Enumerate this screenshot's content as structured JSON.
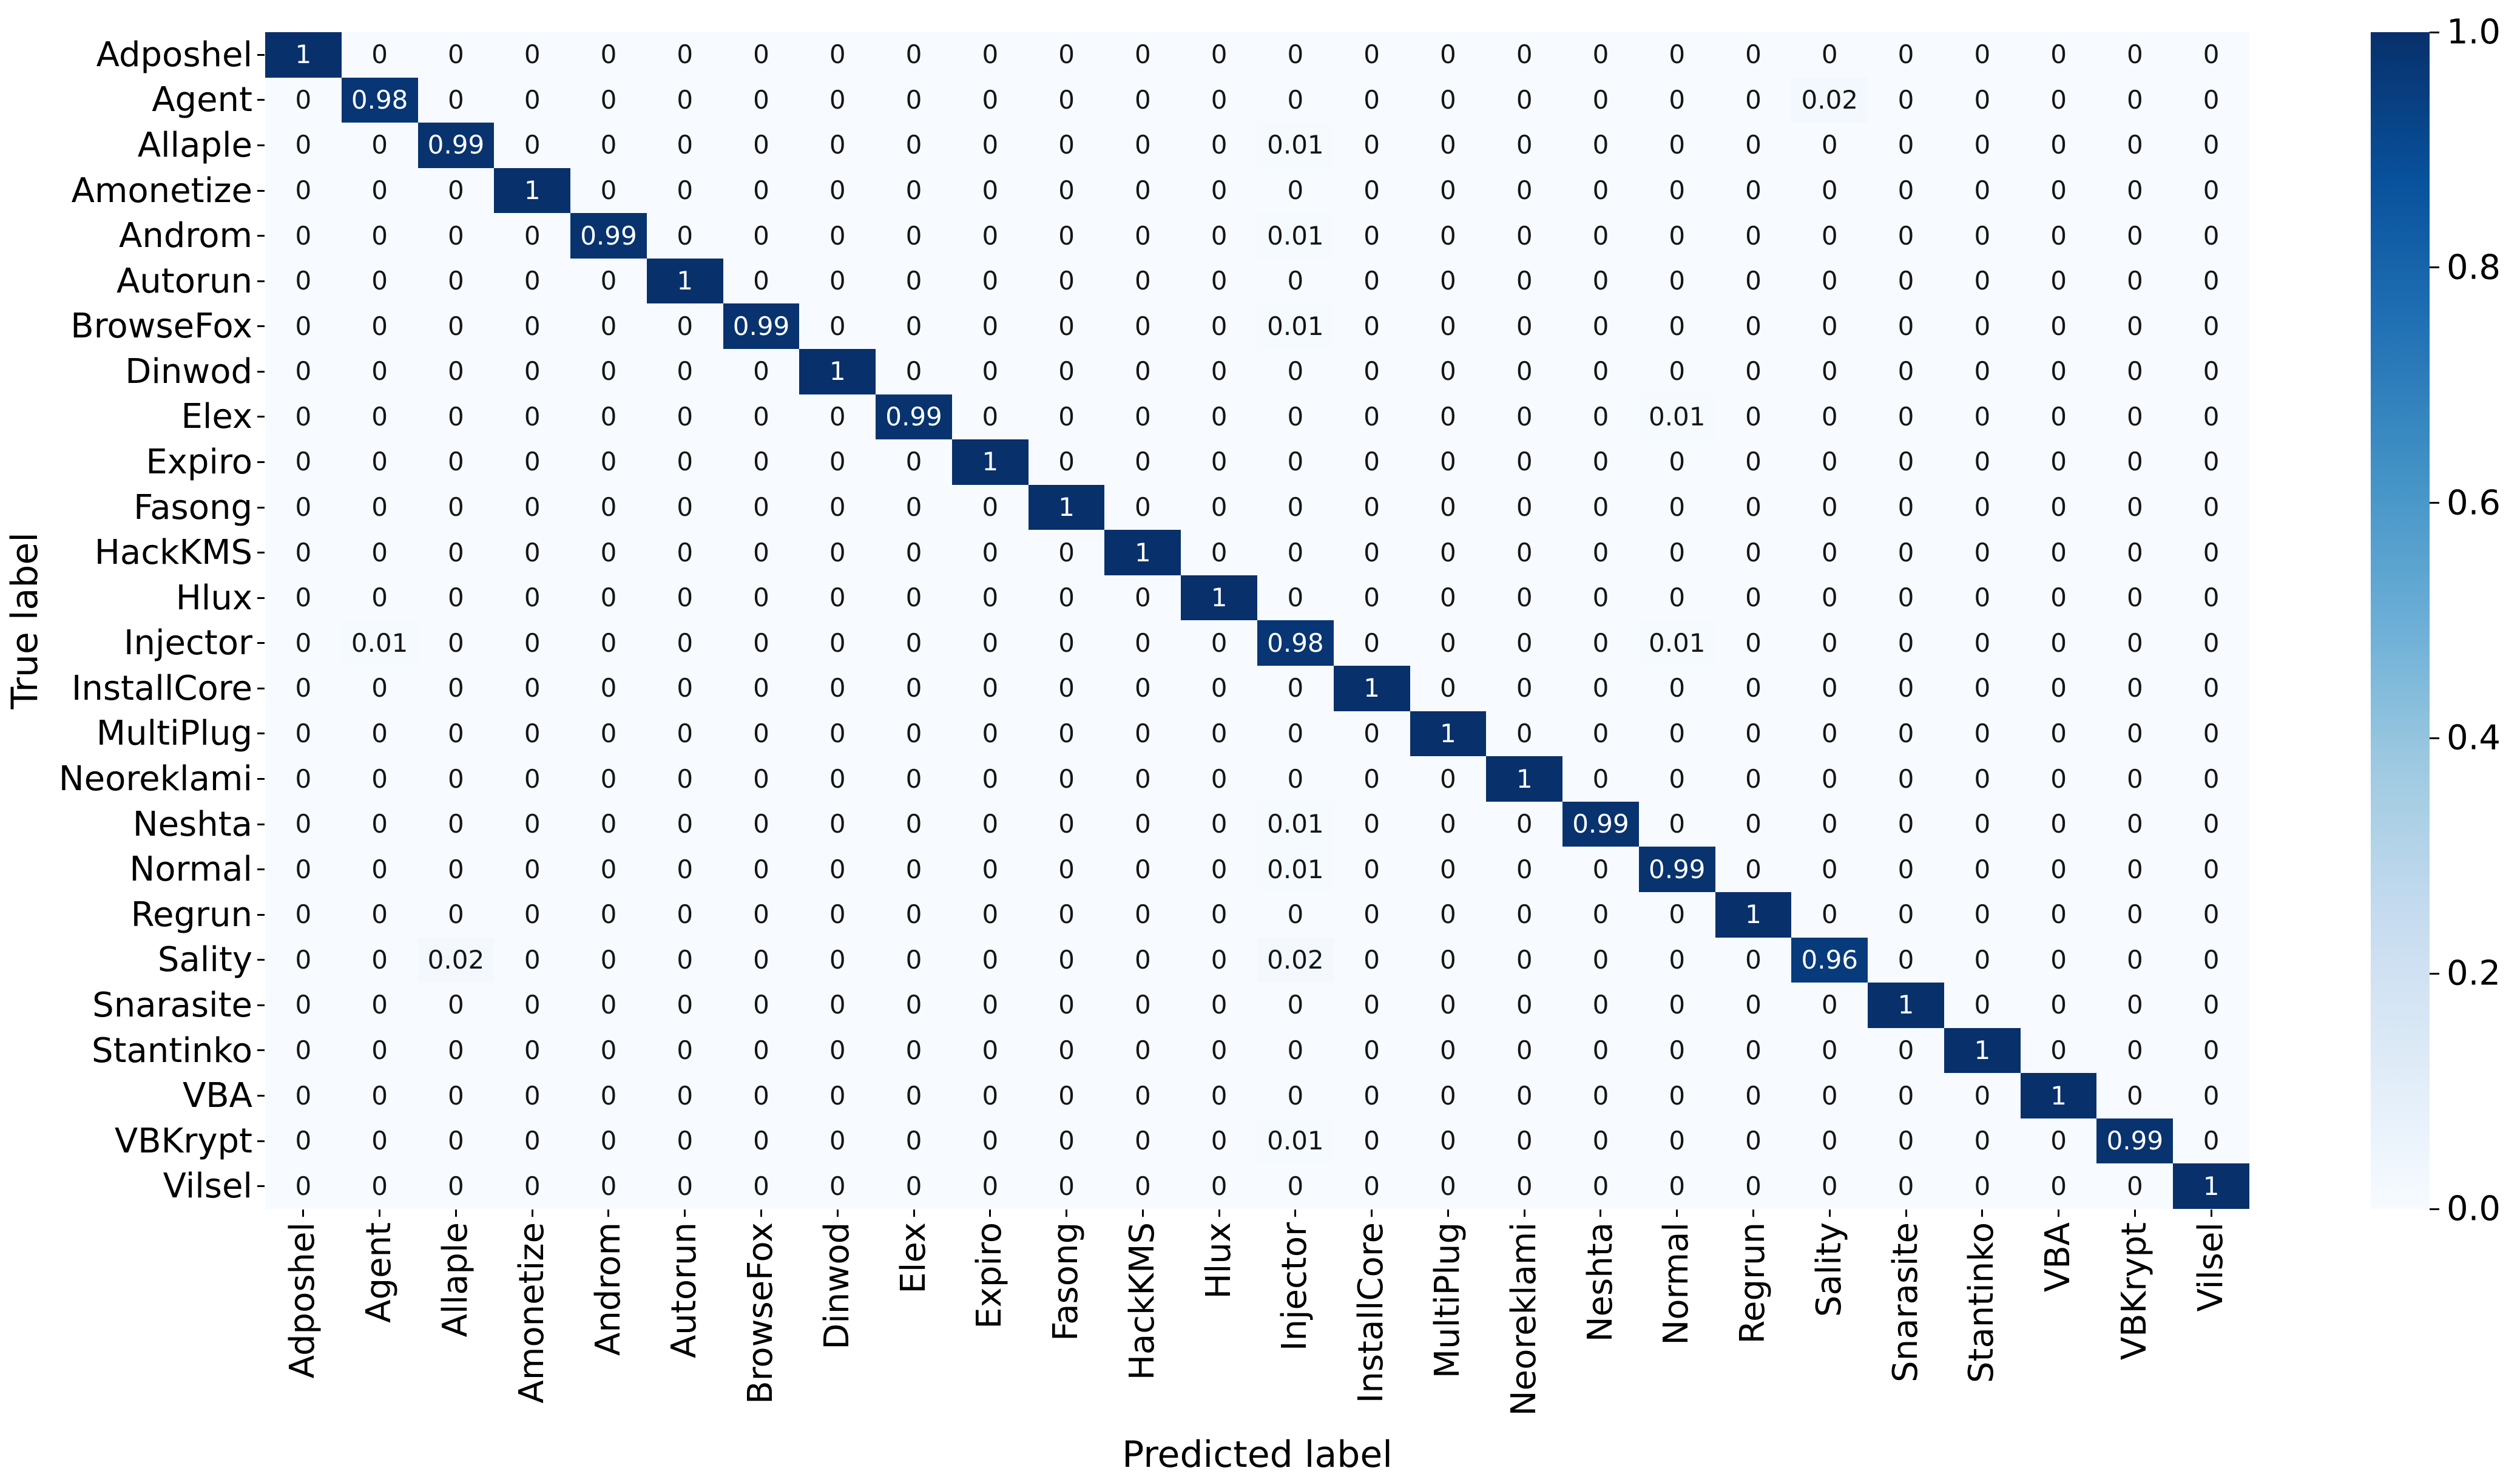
{
  "chart_data": {
    "type": "heatmap",
    "title": "",
    "xlabel": "Predicted label",
    "ylabel": "True label",
    "categories": [
      "Adposhel",
      "Agent",
      "Allaple",
      "Amonetize",
      "Androm",
      "Autorun",
      "BrowseFox",
      "Dinwod",
      "Elex",
      "Expiro",
      "Fasong",
      "HackKMS",
      "Hlux",
      "Injector",
      "InstallCore",
      "MultiPlug",
      "Neoreklami",
      "Neshta",
      "Normal",
      "Regrun",
      "Sality",
      "Snarasite",
      "Stantinko",
      "VBA",
      "VBKrypt",
      "Vilsel"
    ],
    "matrix": [
      [
        1,
        0,
        0,
        0,
        0,
        0,
        0,
        0,
        0,
        0,
        0,
        0,
        0,
        0,
        0,
        0,
        0,
        0,
        0,
        0,
        0,
        0,
        0,
        0,
        0,
        0
      ],
      [
        0,
        0.98,
        0,
        0,
        0,
        0,
        0,
        0,
        0,
        0,
        0,
        0,
        0,
        0,
        0,
        0,
        0,
        0,
        0,
        0,
        0.02,
        0,
        0,
        0,
        0,
        0
      ],
      [
        0,
        0,
        0.99,
        0,
        0,
        0,
        0,
        0,
        0,
        0,
        0,
        0,
        0,
        0.01,
        0,
        0,
        0,
        0,
        0,
        0,
        0,
        0,
        0,
        0,
        0,
        0
      ],
      [
        0,
        0,
        0,
        1,
        0,
        0,
        0,
        0,
        0,
        0,
        0,
        0,
        0,
        0,
        0,
        0,
        0,
        0,
        0,
        0,
        0,
        0,
        0,
        0,
        0,
        0
      ],
      [
        0,
        0,
        0,
        0,
        0.99,
        0,
        0,
        0,
        0,
        0,
        0,
        0,
        0,
        0.01,
        0,
        0,
        0,
        0,
        0,
        0,
        0,
        0,
        0,
        0,
        0,
        0
      ],
      [
        0,
        0,
        0,
        0,
        0,
        1,
        0,
        0,
        0,
        0,
        0,
        0,
        0,
        0,
        0,
        0,
        0,
        0,
        0,
        0,
        0,
        0,
        0,
        0,
        0,
        0
      ],
      [
        0,
        0,
        0,
        0,
        0,
        0,
        0.99,
        0,
        0,
        0,
        0,
        0,
        0,
        0.01,
        0,
        0,
        0,
        0,
        0,
        0,
        0,
        0,
        0,
        0,
        0,
        0
      ],
      [
        0,
        0,
        0,
        0,
        0,
        0,
        0,
        1,
        0,
        0,
        0,
        0,
        0,
        0,
        0,
        0,
        0,
        0,
        0,
        0,
        0,
        0,
        0,
        0,
        0,
        0
      ],
      [
        0,
        0,
        0,
        0,
        0,
        0,
        0,
        0,
        0.99,
        0,
        0,
        0,
        0,
        0,
        0,
        0,
        0,
        0,
        0.01,
        0,
        0,
        0,
        0,
        0,
        0,
        0
      ],
      [
        0,
        0,
        0,
        0,
        0,
        0,
        0,
        0,
        0,
        1,
        0,
        0,
        0,
        0,
        0,
        0,
        0,
        0,
        0,
        0,
        0,
        0,
        0,
        0,
        0,
        0
      ],
      [
        0,
        0,
        0,
        0,
        0,
        0,
        0,
        0,
        0,
        0,
        1,
        0,
        0,
        0,
        0,
        0,
        0,
        0,
        0,
        0,
        0,
        0,
        0,
        0,
        0,
        0
      ],
      [
        0,
        0,
        0,
        0,
        0,
        0,
        0,
        0,
        0,
        0,
        0,
        1,
        0,
        0,
        0,
        0,
        0,
        0,
        0,
        0,
        0,
        0,
        0,
        0,
        0,
        0
      ],
      [
        0,
        0,
        0,
        0,
        0,
        0,
        0,
        0,
        0,
        0,
        0,
        0,
        1,
        0,
        0,
        0,
        0,
        0,
        0,
        0,
        0,
        0,
        0,
        0,
        0,
        0
      ],
      [
        0,
        0.01,
        0,
        0,
        0,
        0,
        0,
        0,
        0,
        0,
        0,
        0,
        0,
        0.98,
        0,
        0,
        0,
        0,
        0.01,
        0,
        0,
        0,
        0,
        0,
        0,
        0
      ],
      [
        0,
        0,
        0,
        0,
        0,
        0,
        0,
        0,
        0,
        0,
        0,
        0,
        0,
        0,
        1,
        0,
        0,
        0,
        0,
        0,
        0,
        0,
        0,
        0,
        0,
        0
      ],
      [
        0,
        0,
        0,
        0,
        0,
        0,
        0,
        0,
        0,
        0,
        0,
        0,
        0,
        0,
        0,
        1,
        0,
        0,
        0,
        0,
        0,
        0,
        0,
        0,
        0,
        0
      ],
      [
        0,
        0,
        0,
        0,
        0,
        0,
        0,
        0,
        0,
        0,
        0,
        0,
        0,
        0,
        0,
        0,
        1,
        0,
        0,
        0,
        0,
        0,
        0,
        0,
        0,
        0
      ],
      [
        0,
        0,
        0,
        0,
        0,
        0,
        0,
        0,
        0,
        0,
        0,
        0,
        0,
        0.01,
        0,
        0,
        0,
        0.99,
        0,
        0,
        0,
        0,
        0,
        0,
        0,
        0
      ],
      [
        0,
        0,
        0,
        0,
        0,
        0,
        0,
        0,
        0,
        0,
        0,
        0,
        0,
        0.01,
        0,
        0,
        0,
        0,
        0.99,
        0,
        0,
        0,
        0,
        0,
        0,
        0
      ],
      [
        0,
        0,
        0,
        0,
        0,
        0,
        0,
        0,
        0,
        0,
        0,
        0,
        0,
        0,
        0,
        0,
        0,
        0,
        0,
        1,
        0,
        0,
        0,
        0,
        0,
        0
      ],
      [
        0,
        0,
        0.02,
        0,
        0,
        0,
        0,
        0,
        0,
        0,
        0,
        0,
        0,
        0.02,
        0,
        0,
        0,
        0,
        0,
        0,
        0.96,
        0,
        0,
        0,
        0,
        0
      ],
      [
        0,
        0,
        0,
        0,
        0,
        0,
        0,
        0,
        0,
        0,
        0,
        0,
        0,
        0,
        0,
        0,
        0,
        0,
        0,
        0,
        0,
        1,
        0,
        0,
        0,
        0
      ],
      [
        0,
        0,
        0,
        0,
        0,
        0,
        0,
        0,
        0,
        0,
        0,
        0,
        0,
        0,
        0,
        0,
        0,
        0,
        0,
        0,
        0,
        0,
        1,
        0,
        0,
        0
      ],
      [
        0,
        0,
        0,
        0,
        0,
        0,
        0,
        0,
        0,
        0,
        0,
        0,
        0,
        0,
        0,
        0,
        0,
        0,
        0,
        0,
        0,
        0,
        0,
        1,
        0,
        0
      ],
      [
        0,
        0,
        0,
        0,
        0,
        0,
        0,
        0,
        0,
        0,
        0,
        0,
        0,
        0.01,
        0,
        0,
        0,
        0,
        0,
        0,
        0,
        0,
        0,
        0,
        0.99,
        0
      ],
      [
        0,
        0,
        0,
        0,
        0,
        0,
        0,
        0,
        0,
        0,
        0,
        0,
        0,
        0,
        0,
        0,
        0,
        0,
        0,
        0,
        0,
        0,
        0,
        0,
        0,
        1
      ]
    ],
    "vmin": 0,
    "vmax": 1,
    "grid": false,
    "colormap": "Blues",
    "colormap_stops": [
      [
        0.0,
        "#f7fbff"
      ],
      [
        0.125,
        "#deebf7"
      ],
      [
        0.25,
        "#c6dbef"
      ],
      [
        0.375,
        "#9ecae1"
      ],
      [
        0.5,
        "#6baed6"
      ],
      [
        0.625,
        "#4292c6"
      ],
      [
        0.75,
        "#2171b5"
      ],
      [
        0.875,
        "#08519c"
      ],
      [
        1.0,
        "#08306b"
      ]
    ],
    "colorbar": {
      "position": "right",
      "ticks": [
        {
          "value": 1.0,
          "label": "1.0"
        },
        {
          "value": 0.8,
          "label": "0.8"
        },
        {
          "value": 0.6,
          "label": "0.6"
        },
        {
          "value": 0.4,
          "label": "0.4"
        },
        {
          "value": 0.2,
          "label": "0.2"
        },
        {
          "value": 0.0,
          "label": "0.0"
        }
      ]
    },
    "annotation_text_colors": {
      "on_dark": "#ffffff",
      "on_light": "#151515",
      "white_text_threshold": 0.5
    }
  }
}
